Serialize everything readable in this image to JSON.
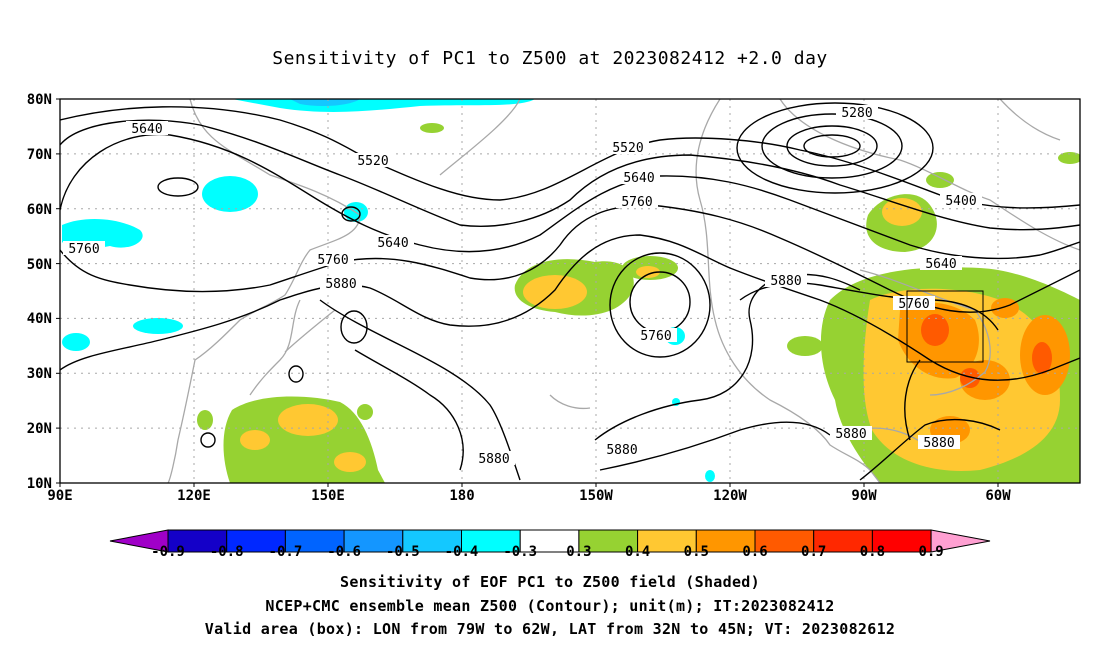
{
  "title": "Sensitivity of PC1 to Z500 at 2023082412 +2.0 day",
  "lat_labels": [
    "80N",
    "70N",
    "60N",
    "50N",
    "40N",
    "30N",
    "20N",
    "10N"
  ],
  "lon_labels": [
    "90E",
    "120E",
    "150E",
    "180",
    "150W",
    "120W",
    "90W",
    "60W"
  ],
  "contour_labels": [
    "5640",
    "5520",
    "5520",
    "5280",
    "5640",
    "5400",
    "5760",
    "5760",
    "5640",
    "5760",
    "5640",
    "5880",
    "5880",
    "5760",
    "5880",
    "5760",
    "5880",
    "5880",
    "5880"
  ],
  "colorbar": {
    "labels": [
      "-0.9",
      "-0.8",
      "-0.7",
      "-0.6",
      "-0.5",
      "-0.4",
      "-0.3",
      "0.3",
      "0.4",
      "0.5",
      "0.6",
      "0.7",
      "0.8",
      "0.9"
    ],
    "colors": [
      "#a000c8",
      "#1400c8",
      "#0028ff",
      "#0064ff",
      "#1496ff",
      "#14c8ff",
      "#00ffff",
      "#ffffff",
      "#96d232",
      "#ffc832",
      "#ff9600",
      "#ff5a00",
      "#ff2800",
      "#ff0000",
      "#ffa0d2"
    ]
  },
  "box": {
    "lon_from": "79W",
    "lon_to": "62W",
    "lat_from": "32N",
    "lat_to": "45N"
  },
  "footer": {
    "line1": "Sensitivity of EOF PC1 to Z500 field (Shaded)",
    "line2": "NCEP+CMC ensemble mean Z500 (Contour); unit(m); IT:2023082412",
    "line3": "Valid area (box): LON from 79W to 62W, LAT from 32N to 45N; VT: 2023082612"
  }
}
